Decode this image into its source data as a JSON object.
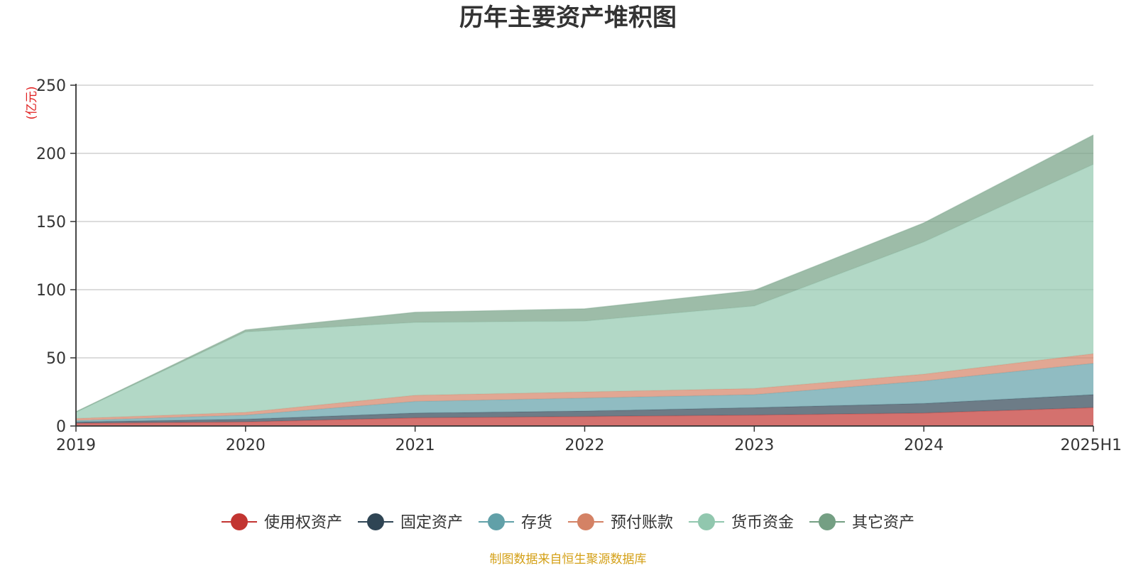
{
  "chart_data": {
    "type": "area",
    "stacked": true,
    "title": "历年主要资产堆积图",
    "unit_label": "(亿元)",
    "categories": [
      "2019",
      "2020",
      "2021",
      "2022",
      "2023",
      "2024",
      "2025H1"
    ],
    "ylim": [
      0,
      250
    ],
    "yticks": [
      "0",
      "50",
      "100",
      "150",
      "200",
      "250"
    ],
    "grid": true,
    "legend_position": "bottom",
    "series": [
      {
        "name": "使用权资产",
        "color": "#c23531",
        "values": [
          2.0,
          3.0,
          6.0,
          7.0,
          8.0,
          9.5,
          13.5
        ]
      },
      {
        "name": "固定资产",
        "color": "#2f4554",
        "values": [
          1.0,
          2.0,
          3.5,
          4.0,
          5.5,
          7.0,
          9.5
        ]
      },
      {
        "name": "存货",
        "color": "#61a0a8",
        "values": [
          1.0,
          3.0,
          8.5,
          9.5,
          9.5,
          16.5,
          23.0
        ]
      },
      {
        "name": "预付账款",
        "color": "#d48265",
        "values": [
          1.5,
          2.0,
          4.5,
          4.5,
          4.5,
          5.0,
          7.0
        ]
      },
      {
        "name": "货币资金",
        "color": "#91c7ae",
        "values": [
          4.5,
          59.0,
          53.5,
          52.0,
          60.5,
          97.0,
          139.0
        ]
      },
      {
        "name": "其它资产",
        "color": "#749f83",
        "values": [
          0.5,
          1.5,
          7.5,
          9.0,
          11.5,
          14.0,
          21.5
        ]
      }
    ],
    "source": "制图数据来自恒生聚源数据库"
  }
}
